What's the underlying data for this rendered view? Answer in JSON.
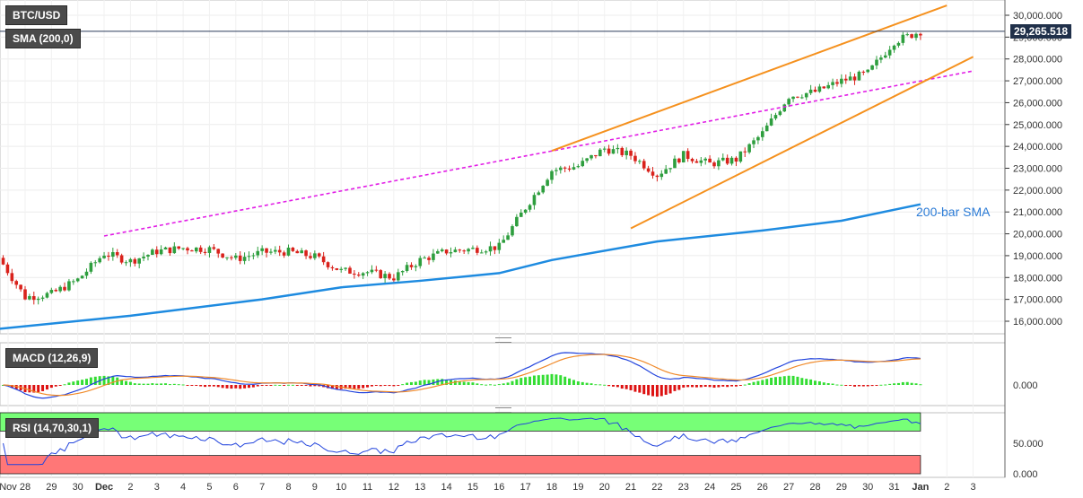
{
  "header": {
    "symbol": "BTC/USD",
    "indicator": "SMA (200,0)",
    "last_price": "29,265.518"
  },
  "annotation": {
    "sma": "200-bar SMA"
  },
  "panels": {
    "macd_label": "MACD (12,26,9)",
    "rsi_label": "RSI (14,70,30,1)"
  },
  "colors": {
    "bull": "#2e9e3e",
    "bear": "#d9221c",
    "sma": "#1e8be0",
    "channel": "#f5911e",
    "trend": "#e21ee6",
    "macd_line": "#2244dd",
    "signal_line": "#f08a2a",
    "hist_pos": "#33dd33",
    "hist_neg": "#dd1111",
    "rsi_line": "#2244dd",
    "rsi_overbought": "#77ff77",
    "rsi_oversold": "#ff7777"
  },
  "chart_data": {
    "type": "candlestick",
    "y_ticks": [
      "30,000.000",
      "29,000.000",
      "28,000.000",
      "27,000.000",
      "26,000.000",
      "25,000.000",
      "24,000.000",
      "23,000.000",
      "22,000.000",
      "21,000.000",
      "20,000.000",
      "19,000.000",
      "18,000.000",
      "17,000.000",
      "16,000.000"
    ],
    "x_ticks": [
      "Nov",
      "28",
      "29",
      "30",
      "Dec",
      "2",
      "3",
      "4",
      "5",
      "6",
      "7",
      "8",
      "9",
      "10",
      "11",
      "12",
      "13",
      "14",
      "15",
      "16",
      "17",
      "18",
      "19",
      "20",
      "21",
      "22",
      "23",
      "24",
      "25",
      "26",
      "27",
      "28",
      "29",
      "30",
      "31",
      "Jan",
      "2",
      "3"
    ],
    "ylim": [
      15500,
      30500
    ],
    "daily_close": [
      [
        "Nov 27",
        17100
      ],
      [
        "Nov 28",
        17250
      ],
      [
        "Nov 29",
        17900
      ],
      [
        "Nov 30",
        19100
      ],
      [
        "Dec 1",
        18750
      ],
      [
        "Dec 2",
        19200
      ],
      [
        "Dec 3",
        19350
      ],
      [
        "Dec 4",
        19300
      ],
      [
        "Dec 5",
        18850
      ],
      [
        "Dec 6",
        19150
      ],
      [
        "Dec 7",
        19180
      ],
      [
        "Dec 8",
        18950
      ],
      [
        "Dec 9",
        18300
      ],
      [
        "Dec 10",
        18250
      ],
      [
        "Dec 11",
        18000
      ],
      [
        "Dec 12",
        18800
      ],
      [
        "Dec 13",
        19200
      ],
      [
        "Dec 14",
        19300
      ],
      [
        "Dec 15",
        19400
      ],
      [
        "Dec 16",
        21200
      ],
      [
        "Dec 17",
        22900
      ],
      [
        "Dec 18",
        23100
      ],
      [
        "Dec 19",
        23900
      ],
      [
        "Dec 20",
        23600
      ],
      [
        "Dec 21",
        22700
      ],
      [
        "Dec 22",
        23600
      ],
      [
        "Dec 23",
        23200
      ],
      [
        "Dec 24",
        23400
      ],
      [
        "Dec 25",
        24600
      ],
      [
        "Dec 26",
        26300
      ],
      [
        "Dec 27",
        26500
      ],
      [
        "Dec 28",
        27000
      ],
      [
        "Dec 29",
        27350
      ],
      [
        "Dec 30",
        28800
      ],
      [
        "Dec 31",
        29265
      ]
    ],
    "sma_200": [
      [
        "Nov 26",
        15650
      ],
      [
        "Dec 1",
        16250
      ],
      [
        "Dec 6",
        17000
      ],
      [
        "Dec 9",
        17550
      ],
      [
        "Dec 12",
        17850
      ],
      [
        "Dec 15",
        18200
      ],
      [
        "Dec 17",
        18800
      ],
      [
        "Dec 21",
        19650
      ],
      [
        "Dec 25",
        20150
      ],
      [
        "Dec 28",
        20600
      ],
      [
        "Dec 31",
        21350
      ]
    ],
    "channel_upper": [
      [
        "Dec 17",
        23800
      ],
      [
        "Jan 1",
        30450
      ]
    ],
    "channel_lower": [
      [
        "Dec 20",
        20250
      ],
      [
        "Jan 2",
        28100
      ]
    ],
    "trend_line": [
      [
        "Nov 30",
        19900
      ],
      [
        "Jan 2",
        27450
      ]
    ],
    "macd_ticks": [
      "0.000"
    ],
    "rsi_ticks": [
      "50.000",
      "0.000"
    ],
    "rsi_levels": {
      "overbought": 70,
      "oversold": 30
    }
  }
}
